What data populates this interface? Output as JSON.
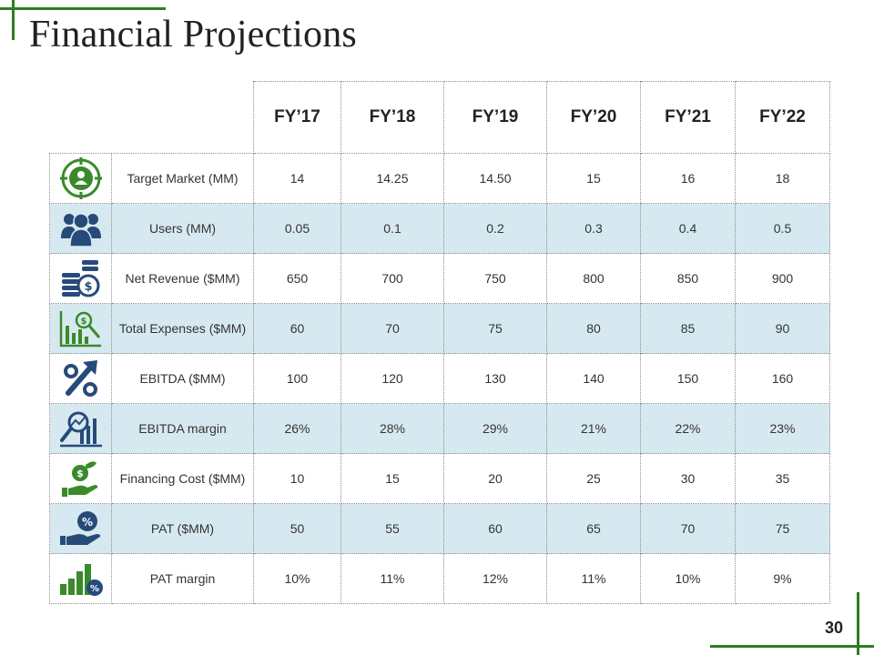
{
  "title": "Financial Projections",
  "page_number": "30",
  "accent_color": "#2e7d1e",
  "icon_colors": {
    "green": "#3a8a2a",
    "navy": "#264a7a"
  },
  "headers": [
    "FY’17",
    "FY’18",
    "FY’19",
    "FY’20",
    "FY’21",
    "FY’22"
  ],
  "rows": [
    {
      "label": "Target Market (MM)",
      "icon": "target-market-icon",
      "values": [
        "14",
        "14.25",
        "14.50",
        "15",
        "16",
        "18"
      ]
    },
    {
      "label": "Users (MM)",
      "icon": "users-icon",
      "values": [
        "0.05",
        "0.1",
        "0.2",
        "0.3",
        "0.4",
        "0.5"
      ]
    },
    {
      "label": "Net Revenue ($MM)",
      "icon": "revenue-coins-icon",
      "values": [
        "650",
        "700",
        "750",
        "800",
        "850",
        "900"
      ]
    },
    {
      "label": "Total Expenses ($MM)",
      "icon": "expenses-chart-icon",
      "values": [
        "60",
        "70",
        "75",
        "80",
        "85",
        "90"
      ]
    },
    {
      "label": "EBITDA ($MM)",
      "icon": "percent-arrow-icon",
      "values": [
        "100",
        "120",
        "130",
        "140",
        "150",
        "160"
      ]
    },
    {
      "label": "EBITDA margin",
      "icon": "magnifier-chart-icon",
      "values": [
        "26%",
        "28%",
        "29%",
        "21%",
        "22%",
        "23%"
      ]
    },
    {
      "label": "Financing Cost ($MM)",
      "icon": "hand-money-icon",
      "values": [
        "10",
        "15",
        "20",
        "25",
        "30",
        "35"
      ]
    },
    {
      "label": "PAT ($MM)",
      "icon": "hand-percent-icon",
      "values": [
        "50",
        "55",
        "60",
        "65",
        "70",
        "75"
      ]
    },
    {
      "label": "PAT margin",
      "icon": "bar-percent-icon",
      "values": [
        "10%",
        "11%",
        "12%",
        "11%",
        "10%",
        "9%"
      ]
    }
  ]
}
